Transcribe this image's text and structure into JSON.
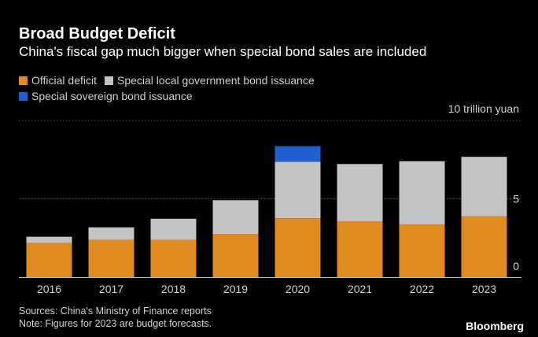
{
  "header": {
    "title": "Broad Budget Deficit",
    "subtitle": "China's fiscal gap much bigger when special bond sales are included"
  },
  "unit_label": "10 trillion yuan",
  "colors": {
    "official": "#e08a22",
    "local": "#c4c4c4",
    "sovereign": "#1f5fd0",
    "background": "#000000",
    "axis": "#bbbbbb"
  },
  "chart_data": {
    "type": "bar",
    "stacked": true,
    "categories": [
      "2016",
      "2017",
      "2018",
      "2019",
      "2020",
      "2021",
      "2022",
      "2023"
    ],
    "series": [
      {
        "name": "Official deficit",
        "color": "#e08a22",
        "values": [
          2.18,
          2.38,
          2.38,
          2.76,
          3.76,
          3.57,
          3.37,
          3.88
        ]
      },
      {
        "name": "Special local government bond issuance",
        "color": "#c4c4c4",
        "values": [
          0.4,
          0.8,
          1.35,
          2.15,
          3.6,
          3.65,
          4.03,
          3.8
        ]
      },
      {
        "name": "Special sovereign bond issuance",
        "color": "#1f5fd0",
        "values": [
          0,
          0,
          0,
          0,
          1.0,
          0,
          0,
          0
        ]
      }
    ],
    "yticks": [
      0,
      5,
      10
    ],
    "ylim": [
      0,
      10
    ],
    "grid": true,
    "legend_position": "top-left"
  },
  "footer": {
    "source": "Sources: China's Ministry of Finance reports",
    "note": "Note: Figures for 2023 are budget forecasts.",
    "brand": "Bloomberg"
  }
}
